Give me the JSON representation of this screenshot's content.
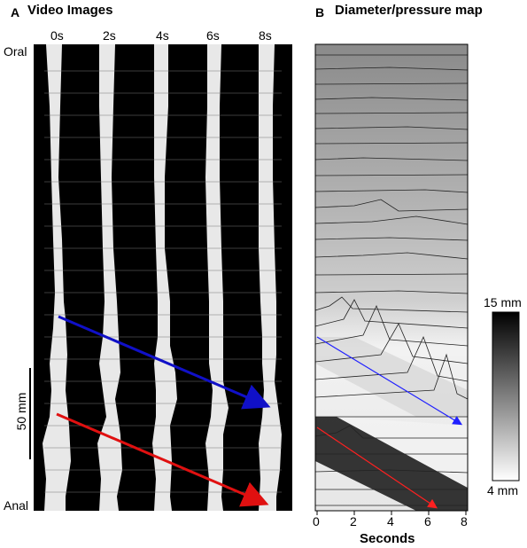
{
  "panel_a": {
    "letter": "A",
    "title": "Video Images",
    "time_labels": [
      "0s",
      "2s",
      "4s",
      "6s",
      "8s"
    ],
    "oral_label": "Oral",
    "anal_label": "Anal",
    "scale_label": "50 mm",
    "arrow_colors": {
      "upper": "#1010c8",
      "lower": "#e01010"
    }
  },
  "panel_b": {
    "letter": "B",
    "title": "Diameter/pressure map",
    "xlabel": "Seconds",
    "x_ticks": [
      "0",
      "2",
      "4",
      "6",
      "8"
    ],
    "colorbar_max": "15 mm",
    "colorbar_min": "4 mm",
    "arrow_colors": {
      "upper": "#2020ff",
      "lower": "#ff2020"
    }
  }
}
